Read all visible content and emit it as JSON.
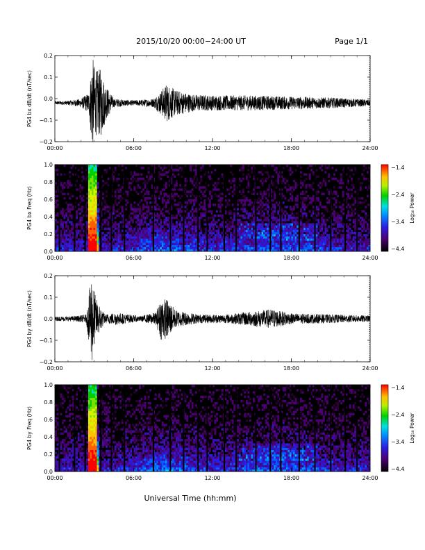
{
  "header": {
    "title": "2015/10/20  00:00−24:00 UT",
    "page": "Page 1/1"
  },
  "xlabel": "Universal Time (hh:mm)",
  "chart_data": [
    {
      "type": "line",
      "ylabel": "PG4 bx dB/dt (nT/sec)",
      "xlim": [
        0,
        24
      ],
      "ylim": [
        -0.2,
        0.2
      ],
      "yticks": [
        "0.2",
        "0.1",
        "0.0",
        "−0.1",
        "−0.2"
      ],
      "xticks": [
        "00:00",
        "06:00",
        "12:00",
        "18:00",
        "24:00"
      ],
      "baseline": -0.02,
      "envelope": [
        {
          "x": 0,
          "amp": 0.008
        },
        {
          "x": 1.0,
          "amp": 0.01
        },
        {
          "x": 2.0,
          "amp": 0.02
        },
        {
          "x": 2.6,
          "amp": 0.05
        },
        {
          "x": 2.85,
          "amp": 0.22
        },
        {
          "x": 3.1,
          "amp": 0.15
        },
        {
          "x": 3.5,
          "amp": 0.16
        },
        {
          "x": 3.9,
          "amp": 0.08
        },
        {
          "x": 4.5,
          "amp": 0.02
        },
        {
          "x": 6.0,
          "amp": 0.012
        },
        {
          "x": 7.5,
          "amp": 0.02
        },
        {
          "x": 8.0,
          "amp": 0.05
        },
        {
          "x": 8.5,
          "amp": 0.09
        },
        {
          "x": 9.2,
          "amp": 0.06
        },
        {
          "x": 10.5,
          "amp": 0.04
        },
        {
          "x": 12.0,
          "amp": 0.035
        },
        {
          "x": 15.0,
          "amp": 0.035
        },
        {
          "x": 18.0,
          "amp": 0.03
        },
        {
          "x": 21.0,
          "amp": 0.025
        },
        {
          "x": 24.0,
          "amp": 0.015
        }
      ]
    },
    {
      "type": "heatmap",
      "ylabel": "PG4 bx Freq (Hz)",
      "xlim": [
        0,
        24
      ],
      "ylim": [
        0,
        1.0
      ],
      "yticks": [
        "1.0",
        "0.8",
        "0.6",
        "0.4",
        "0.2",
        "0.0"
      ],
      "xticks": [
        "00:00",
        "06:00",
        "12:00",
        "18:00",
        "24:00"
      ],
      "colorbar": {
        "label": "Log₁₀ Power",
        "ticks": [
          "−1.4",
          "−2.4",
          "−3.4",
          "−4.4"
        ],
        "range": [
          -4.4,
          -1.4
        ]
      },
      "dropout_times": [
        0.35,
        1.5,
        2.3,
        3.5,
        4.3,
        5.3,
        7.5,
        8.8,
        9.8,
        10.9,
        11.6,
        12.9,
        13.8,
        15.3,
        16.4,
        17.2,
        18.6,
        19.8,
        21.0,
        22.1,
        23.0
      ]
    },
    {
      "type": "line",
      "ylabel": "PG4 by dB/dt (nT/sec)",
      "xlim": [
        0,
        24
      ],
      "ylim": [
        -0.2,
        0.2
      ],
      "yticks": [
        "0.2",
        "0.1",
        "0.0",
        "−0.1",
        "−0.2"
      ],
      "xticks": [
        "00:00",
        "06:00",
        "12:00",
        "18:00",
        "24:00"
      ],
      "baseline": 0.0,
      "envelope": [
        {
          "x": 0,
          "amp": 0.01
        },
        {
          "x": 1.5,
          "amp": 0.012
        },
        {
          "x": 2.4,
          "amp": 0.02
        },
        {
          "x": 2.8,
          "amp": 0.22
        },
        {
          "x": 3.1,
          "amp": 0.1
        },
        {
          "x": 3.8,
          "amp": 0.02
        },
        {
          "x": 4.6,
          "amp": 0.03
        },
        {
          "x": 6.5,
          "amp": 0.012
        },
        {
          "x": 7.7,
          "amp": 0.03
        },
        {
          "x": 8.1,
          "amp": 0.1
        },
        {
          "x": 8.6,
          "amp": 0.09
        },
        {
          "x": 9.2,
          "amp": 0.04
        },
        {
          "x": 11.0,
          "amp": 0.02
        },
        {
          "x": 13.0,
          "amp": 0.02
        },
        {
          "x": 16.5,
          "amp": 0.045
        },
        {
          "x": 18.0,
          "amp": 0.025
        },
        {
          "x": 21.0,
          "amp": 0.02
        },
        {
          "x": 24.0,
          "amp": 0.015
        }
      ]
    },
    {
      "type": "heatmap",
      "ylabel": "PG4 by Freq (Hz)",
      "xlim": [
        0,
        24
      ],
      "ylim": [
        0,
        1.0
      ],
      "yticks": [
        "1.0",
        "0.8",
        "0.6",
        "0.4",
        "0.2",
        "0.0"
      ],
      "xticks": [
        "00:00",
        "06:00",
        "12:00",
        "18:00",
        "24:00"
      ],
      "colorbar": {
        "label": "Log₁₀ Power",
        "ticks": [
          "−1.4",
          "−2.4",
          "−3.4",
          "−4.4"
        ],
        "range": [
          -4.4,
          -1.4
        ]
      },
      "dropout_times": [
        0.35,
        1.5,
        2.3,
        3.5,
        4.3,
        5.3,
        7.5,
        8.8,
        9.8,
        10.9,
        11.6,
        12.9,
        13.8,
        15.3,
        16.4,
        17.2,
        18.6,
        19.8,
        21.0,
        22.1,
        23.0
      ]
    }
  ]
}
